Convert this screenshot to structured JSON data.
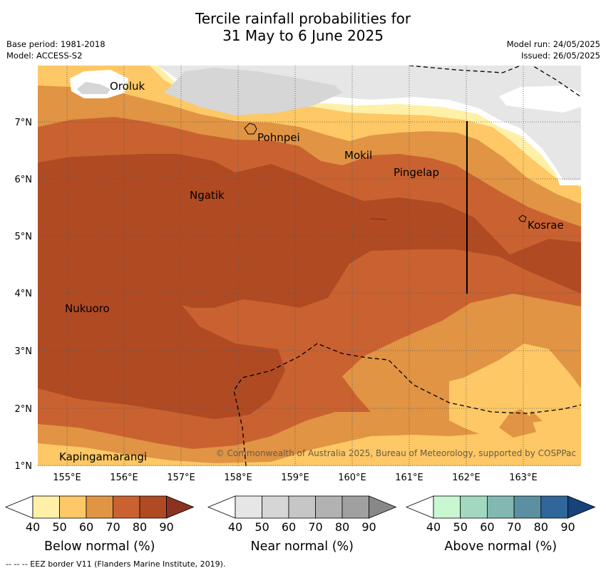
{
  "title": {
    "line1": "Tercile rainfall probabilities for",
    "line2": "31 May to 6 June 2025"
  },
  "meta": {
    "base_period": "Base period: 1981-2018",
    "model": "Model: ACCESS-S2",
    "model_run": "Model run: 24/05/2025",
    "issued": "Issued: 26/05/2025"
  },
  "map": {
    "lat_labels": [
      "7°N",
      "6°N",
      "5°N",
      "4°N",
      "3°N",
      "2°N",
      "1°N"
    ],
    "lon_labels": [
      "155°E",
      "156°E",
      "157°E",
      "158°E",
      "159°E",
      "160°E",
      "161°E",
      "162°E",
      "163°E"
    ],
    "places": [
      "Oroluk",
      "Pohnpei",
      "Mokil",
      "Pingelap",
      "Ngatik",
      "Kosrae",
      "Nukuoro",
      "Kapingamarangi"
    ],
    "copyright": "© Commonwealth of Australia 2025, Bureau of Meteorology, supported by COSPPac"
  },
  "colorbars": [
    {
      "title": "Below normal (%)",
      "ticks": [
        "40",
        "50",
        "60",
        "70",
        "80",
        "90"
      ],
      "colors": [
        "#fff0a8",
        "#fdc865",
        "#e09444",
        "#c96230",
        "#b04a23",
        "#8c3220"
      ]
    },
    {
      "title": "Near normal (%)",
      "ticks": [
        "40",
        "50",
        "60",
        "70",
        "80",
        "90"
      ],
      "colors": [
        "#e6e6e6",
        "#d6d6d6",
        "#c6c6c6",
        "#b2b2b2",
        "#a0a0a0",
        "#888888"
      ]
    },
    {
      "title": "Above normal (%)",
      "ticks": [
        "40",
        "50",
        "60",
        "70",
        "80",
        "90"
      ],
      "colors": [
        "#c8f7d2",
        "#a3d8c0",
        "#82b7b2",
        "#5b90a2",
        "#30669a",
        "#17427a"
      ]
    }
  ],
  "footer": "--  --  -- EEZ border V11 (Flanders Marine Institute, 2019)."
}
